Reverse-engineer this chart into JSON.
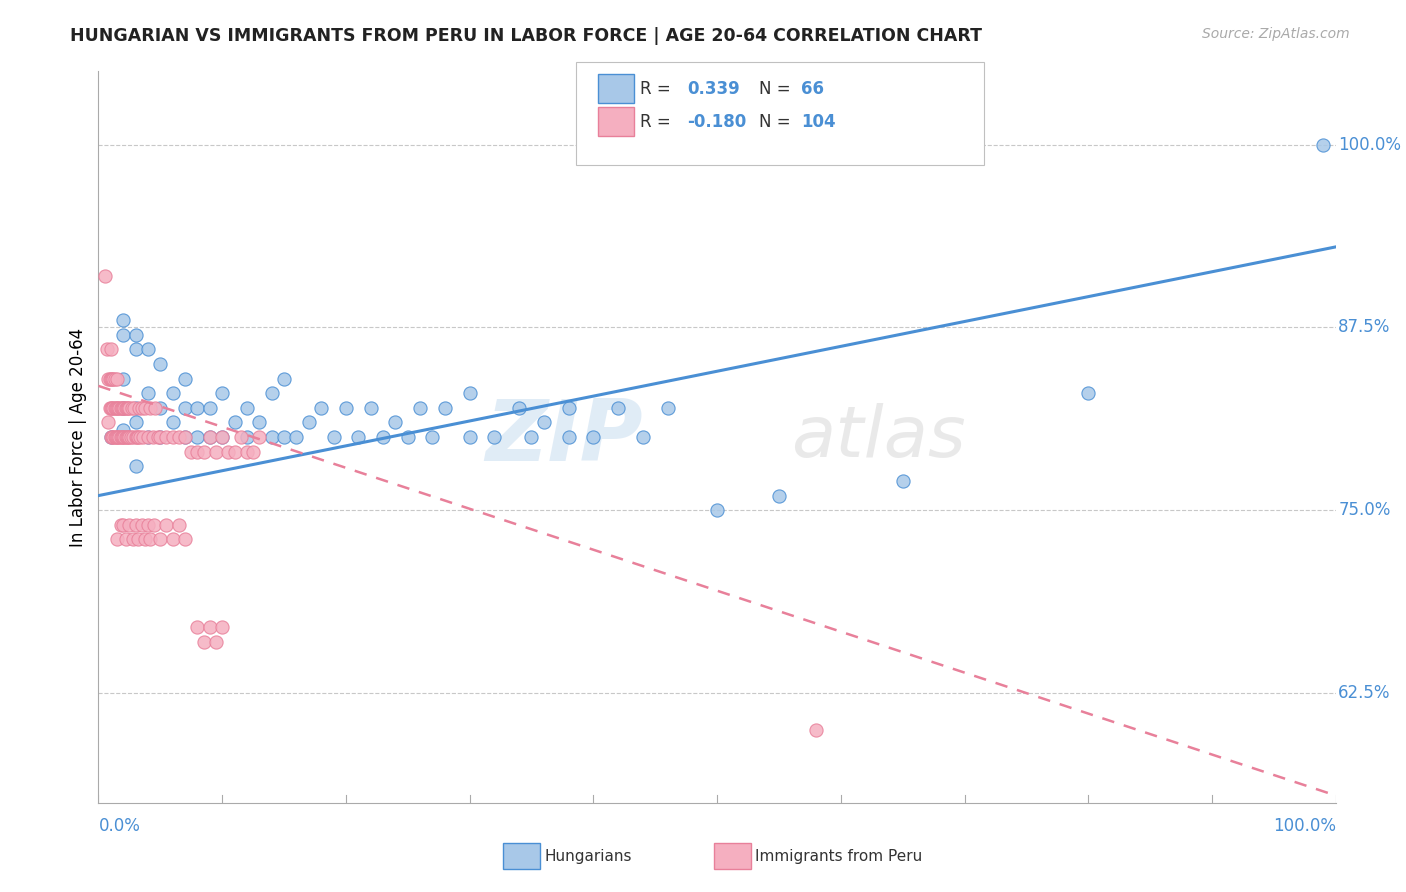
{
  "title": "HUNGARIAN VS IMMIGRANTS FROM PERU IN LABOR FORCE | AGE 20-64 CORRELATION CHART",
  "source": "Source: ZipAtlas.com",
  "ylabel": "In Labor Force | Age 20-64",
  "ytick_labels": [
    "62.5%",
    "75.0%",
    "87.5%",
    "100.0%"
  ],
  "ytick_values": [
    0.625,
    0.75,
    0.875,
    1.0
  ],
  "xlim": [
    0.0,
    1.0
  ],
  "ylim": [
    0.55,
    1.05
  ],
  "color_hungarian": "#a8c8e8",
  "color_peru": "#f5afc0",
  "color_line_hungarian": "#4a8fd4",
  "color_line_peru": "#e8809a",
  "background_color": "#ffffff",
  "grid_color": "#c8c8c8",
  "watermark_zip": "ZIP",
  "watermark_atlas": "atlas",
  "hungarian_points": [
    [
      0.01,
      0.8
    ],
    [
      0.02,
      0.82
    ],
    [
      0.02,
      0.84
    ],
    [
      0.02,
      0.87
    ],
    [
      0.02,
      0.88
    ],
    [
      0.02,
      0.805
    ],
    [
      0.03,
      0.81
    ],
    [
      0.03,
      0.82
    ],
    [
      0.03,
      0.86
    ],
    [
      0.03,
      0.87
    ],
    [
      0.03,
      0.78
    ],
    [
      0.04,
      0.8
    ],
    [
      0.04,
      0.83
    ],
    [
      0.04,
      0.86
    ],
    [
      0.05,
      0.8
    ],
    [
      0.05,
      0.82
    ],
    [
      0.05,
      0.85
    ],
    [
      0.06,
      0.81
    ],
    [
      0.06,
      0.83
    ],
    [
      0.07,
      0.8
    ],
    [
      0.07,
      0.82
    ],
    [
      0.07,
      0.84
    ],
    [
      0.08,
      0.8
    ],
    [
      0.08,
      0.82
    ],
    [
      0.09,
      0.8
    ],
    [
      0.09,
      0.82
    ],
    [
      0.1,
      0.8
    ],
    [
      0.1,
      0.83
    ],
    [
      0.11,
      0.81
    ],
    [
      0.12,
      0.8
    ],
    [
      0.12,
      0.82
    ],
    [
      0.13,
      0.81
    ],
    [
      0.14,
      0.8
    ],
    [
      0.14,
      0.83
    ],
    [
      0.15,
      0.8
    ],
    [
      0.15,
      0.84
    ],
    [
      0.16,
      0.8
    ],
    [
      0.17,
      0.81
    ],
    [
      0.18,
      0.82
    ],
    [
      0.19,
      0.8
    ],
    [
      0.2,
      0.82
    ],
    [
      0.21,
      0.8
    ],
    [
      0.22,
      0.82
    ],
    [
      0.23,
      0.8
    ],
    [
      0.24,
      0.81
    ],
    [
      0.25,
      0.8
    ],
    [
      0.26,
      0.82
    ],
    [
      0.27,
      0.8
    ],
    [
      0.28,
      0.82
    ],
    [
      0.3,
      0.8
    ],
    [
      0.3,
      0.83
    ],
    [
      0.32,
      0.8
    ],
    [
      0.34,
      0.82
    ],
    [
      0.35,
      0.8
    ],
    [
      0.36,
      0.81
    ],
    [
      0.38,
      0.8
    ],
    [
      0.38,
      0.82
    ],
    [
      0.4,
      0.8
    ],
    [
      0.42,
      0.82
    ],
    [
      0.44,
      0.8
    ],
    [
      0.46,
      0.82
    ],
    [
      0.5,
      0.75
    ],
    [
      0.55,
      0.76
    ],
    [
      0.65,
      0.77
    ],
    [
      0.8,
      0.83
    ],
    [
      0.99,
      1.0
    ]
  ],
  "peru_points": [
    [
      0.005,
      0.91
    ],
    [
      0.007,
      0.86
    ],
    [
      0.008,
      0.81
    ],
    [
      0.008,
      0.84
    ],
    [
      0.009,
      0.82
    ],
    [
      0.009,
      0.84
    ],
    [
      0.01,
      0.8
    ],
    [
      0.01,
      0.82
    ],
    [
      0.01,
      0.84
    ],
    [
      0.01,
      0.86
    ],
    [
      0.011,
      0.8
    ],
    [
      0.011,
      0.82
    ],
    [
      0.011,
      0.84
    ],
    [
      0.012,
      0.8
    ],
    [
      0.012,
      0.82
    ],
    [
      0.012,
      0.84
    ],
    [
      0.013,
      0.8
    ],
    [
      0.013,
      0.82
    ],
    [
      0.013,
      0.84
    ],
    [
      0.014,
      0.8
    ],
    [
      0.014,
      0.82
    ],
    [
      0.015,
      0.8
    ],
    [
      0.015,
      0.82
    ],
    [
      0.015,
      0.84
    ],
    [
      0.016,
      0.8
    ],
    [
      0.016,
      0.82
    ],
    [
      0.017,
      0.8
    ],
    [
      0.017,
      0.82
    ],
    [
      0.018,
      0.8
    ],
    [
      0.018,
      0.82
    ],
    [
      0.019,
      0.8
    ],
    [
      0.019,
      0.82
    ],
    [
      0.02,
      0.8
    ],
    [
      0.02,
      0.82
    ],
    [
      0.021,
      0.8
    ],
    [
      0.021,
      0.82
    ],
    [
      0.022,
      0.8
    ],
    [
      0.022,
      0.82
    ],
    [
      0.023,
      0.8
    ],
    [
      0.023,
      0.82
    ],
    [
      0.024,
      0.8
    ],
    [
      0.024,
      0.82
    ],
    [
      0.025,
      0.8
    ],
    [
      0.025,
      0.82
    ],
    [
      0.026,
      0.8
    ],
    [
      0.027,
      0.82
    ],
    [
      0.028,
      0.8
    ],
    [
      0.029,
      0.82
    ],
    [
      0.03,
      0.8
    ],
    [
      0.031,
      0.8
    ],
    [
      0.032,
      0.8
    ],
    [
      0.033,
      0.82
    ],
    [
      0.034,
      0.8
    ],
    [
      0.035,
      0.82
    ],
    [
      0.036,
      0.8
    ],
    [
      0.038,
      0.82
    ],
    [
      0.04,
      0.8
    ],
    [
      0.042,
      0.82
    ],
    [
      0.044,
      0.8
    ],
    [
      0.046,
      0.82
    ],
    [
      0.048,
      0.8
    ],
    [
      0.05,
      0.8
    ],
    [
      0.055,
      0.8
    ],
    [
      0.06,
      0.8
    ],
    [
      0.065,
      0.8
    ],
    [
      0.07,
      0.8
    ],
    [
      0.075,
      0.79
    ],
    [
      0.08,
      0.79
    ],
    [
      0.085,
      0.79
    ],
    [
      0.09,
      0.8
    ],
    [
      0.095,
      0.79
    ],
    [
      0.1,
      0.8
    ],
    [
      0.105,
      0.79
    ],
    [
      0.11,
      0.79
    ],
    [
      0.115,
      0.8
    ],
    [
      0.12,
      0.79
    ],
    [
      0.125,
      0.79
    ],
    [
      0.13,
      0.8
    ],
    [
      0.015,
      0.73
    ],
    [
      0.018,
      0.74
    ],
    [
      0.02,
      0.74
    ],
    [
      0.022,
      0.73
    ],
    [
      0.025,
      0.74
    ],
    [
      0.028,
      0.73
    ],
    [
      0.03,
      0.74
    ],
    [
      0.032,
      0.73
    ],
    [
      0.035,
      0.74
    ],
    [
      0.038,
      0.73
    ],
    [
      0.04,
      0.74
    ],
    [
      0.042,
      0.73
    ],
    [
      0.045,
      0.74
    ],
    [
      0.05,
      0.73
    ],
    [
      0.055,
      0.74
    ],
    [
      0.06,
      0.73
    ],
    [
      0.065,
      0.74
    ],
    [
      0.07,
      0.73
    ],
    [
      0.08,
      0.67
    ],
    [
      0.085,
      0.66
    ],
    [
      0.09,
      0.67
    ],
    [
      0.095,
      0.66
    ],
    [
      0.1,
      0.67
    ],
    [
      0.58,
      0.6
    ]
  ]
}
